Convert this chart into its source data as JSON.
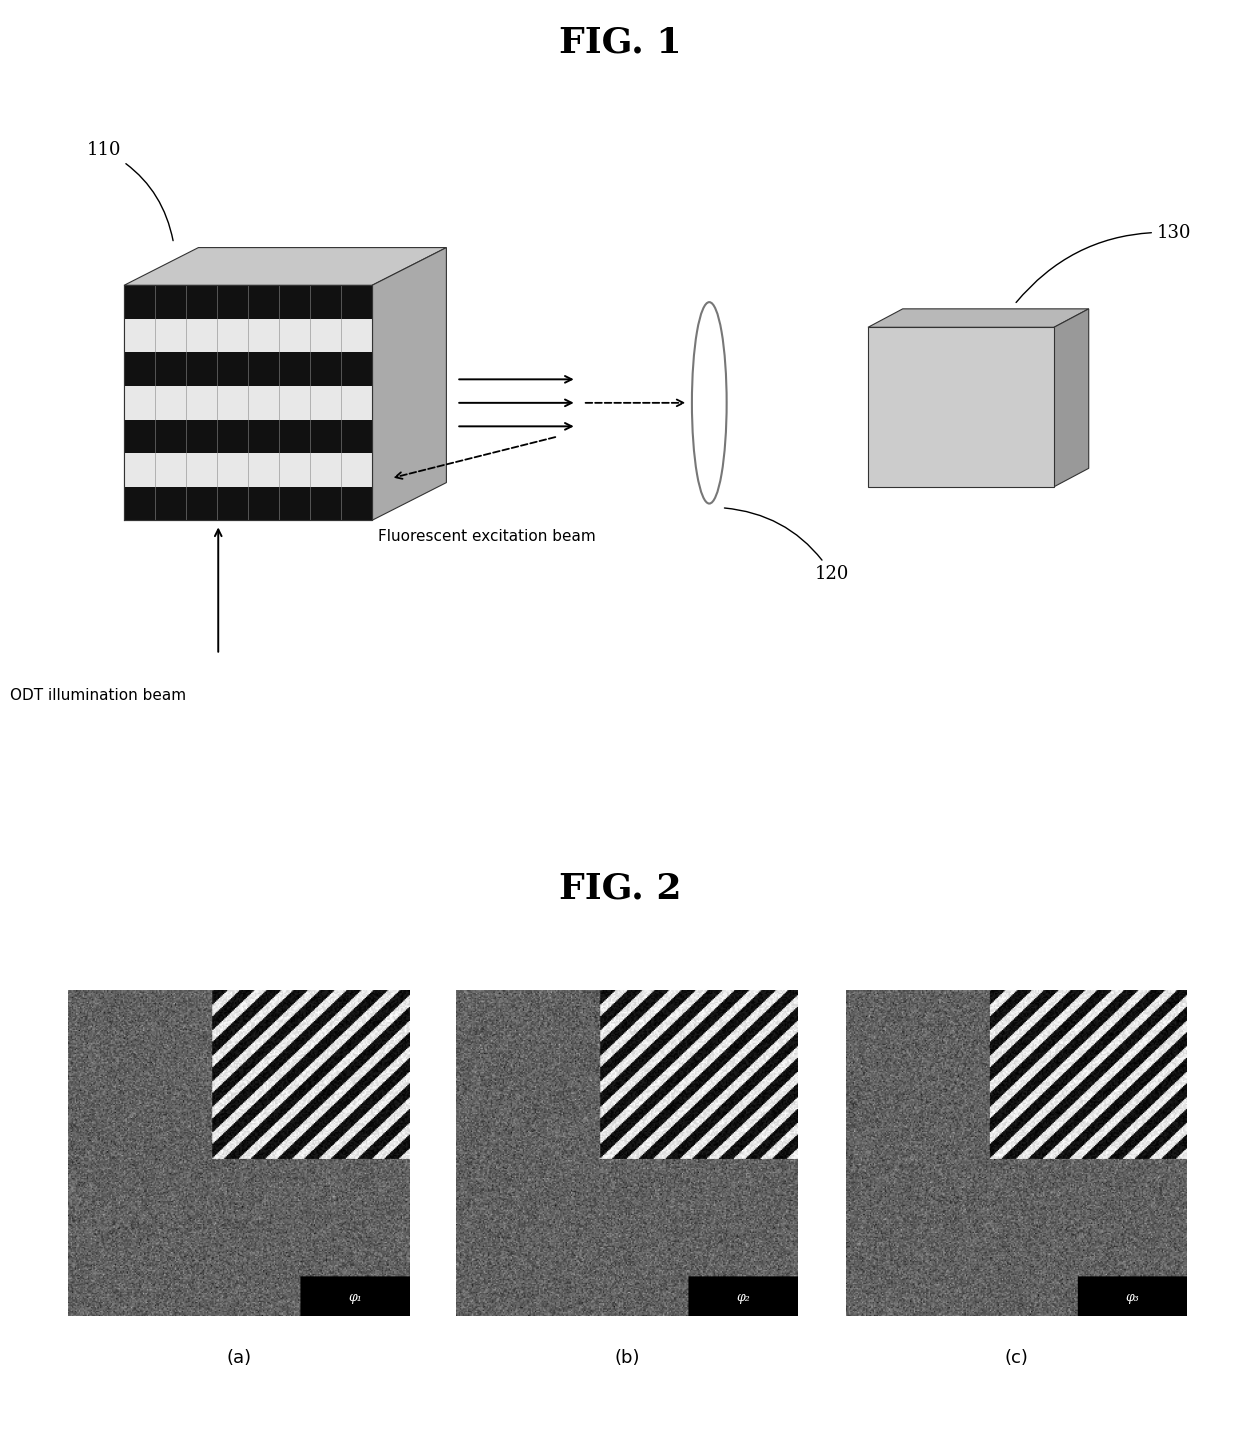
{
  "fig1_title": "FIG. 1",
  "fig2_title": "FIG. 2",
  "label_110": "110",
  "label_120": "120",
  "label_130": "130",
  "label_odt": "ODT illumination beam",
  "label_fluor": "Fluorescent excitation beam",
  "sub_labels": [
    "(a)",
    "(b)",
    "(c)"
  ],
  "phi_labels": [
    "φ₁",
    "φ₂",
    "φ₃"
  ],
  "bg_color": "#ffffff"
}
